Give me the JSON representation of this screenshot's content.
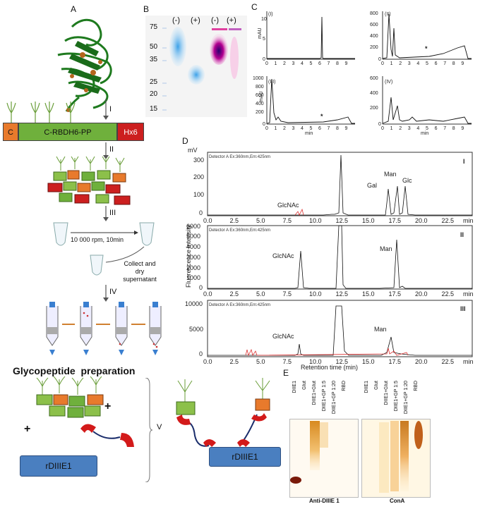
{
  "panels": {
    "a": "A",
    "b": "B",
    "c": "C",
    "d": "D",
    "e": "E"
  },
  "steps": [
    "I",
    "II",
    "III",
    "IV",
    "V"
  ],
  "construct": {
    "left": "C",
    "middle": "C-RBDH6-PP",
    "right": "Hx6"
  },
  "centrifuge": {
    "speed": "10 000 rpm, 10min",
    "collect_line1": "Collect and",
    "collect_line2": "dry",
    "collect_line3": "supernatant"
  },
  "section_title": "Glycopeptide  preparation",
  "rdiiie1_left": "rDIIIE1",
  "rdiiie1_right": "rDIIIE1",
  "plus": "+",
  "gel_b": {
    "markers": [
      "75",
      "50",
      "35",
      "25",
      "20",
      "15"
    ],
    "lanes": [
      "(-)",
      "(+)",
      "(-)",
      "(+)"
    ]
  },
  "panel_c": {
    "ylabel": "mAU",
    "xlabel": "min",
    "subplots": [
      {
        "id": "(I)",
        "yticks": [
          "10",
          "5",
          "0"
        ],
        "xticks": [
          "0",
          "1",
          "2",
          "3",
          "4",
          "5",
          "6",
          "7",
          "8",
          "9"
        ],
        "star": false
      },
      {
        "id": "(II)",
        "yticks": [
          "800",
          "600",
          "400",
          "200",
          "0"
        ],
        "xticks": [
          "0",
          "1",
          "2",
          "3",
          "4",
          "5",
          "6",
          "7",
          "8",
          "9"
        ],
        "star": true
      },
      {
        "id": "(III)",
        "yticks": [
          "1000",
          "800",
          "600",
          "400",
          "200",
          "0"
        ],
        "xticks": [
          "0",
          "1",
          "2",
          "3",
          "4",
          "5",
          "6",
          "7",
          "8",
          "9"
        ],
        "star": true
      },
      {
        "id": "(IV)",
        "yticks": [
          "600",
          "400",
          "200",
          "0"
        ],
        "xticks": [
          "0",
          "1",
          "2",
          "3",
          "4",
          "5",
          "6",
          "7",
          "8",
          "9"
        ],
        "star": false
      }
    ],
    "star": "*"
  },
  "panel_d": {
    "ylabel": "Fluorescence intensity",
    "unit": "mV",
    "xlabel": "Retention time (min)",
    "xticks": [
      "0.0",
      "2.5",
      "5.0",
      "7.5",
      "10.0",
      "12.5",
      "15.0",
      "17.5",
      "20.0",
      "22.5"
    ],
    "xunit": "min",
    "detector": "Detector A Ex:360nm,Em:425nm",
    "traces": [
      {
        "id": "I",
        "yticks": [
          "300",
          "200",
          "100",
          "0"
        ],
        "labels": [
          "GlcNAc",
          "Gal",
          "Man",
          "Glc"
        ]
      },
      {
        "id": "II",
        "yticks": [
          "6000",
          "5000",
          "4000",
          "3000",
          "2000",
          "1000",
          "0"
        ],
        "labels": [
          "GlcNAc",
          "Man"
        ]
      },
      {
        "id": "III",
        "yticks": [
          "10000",
          "5000",
          "0"
        ],
        "labels": [
          "GlcNAc",
          "Man"
        ]
      }
    ]
  },
  "panel_e": {
    "lanes": [
      "DIIE1",
      "Glut",
      "DIIE1+Glut",
      "DIIE1+GP 1:5",
      "DIIE1+GP 1:20",
      "RBD"
    ],
    "blot1": "Anti-DIIIE 1",
    "blot2": "ConA"
  },
  "colors": {
    "construct_c": "#e87a2c",
    "construct_mid": "#6fb03c",
    "construct_h": "#cc1f1f",
    "rdiiie1": "#4a7fc0",
    "protein": "#1e7a1e"
  }
}
